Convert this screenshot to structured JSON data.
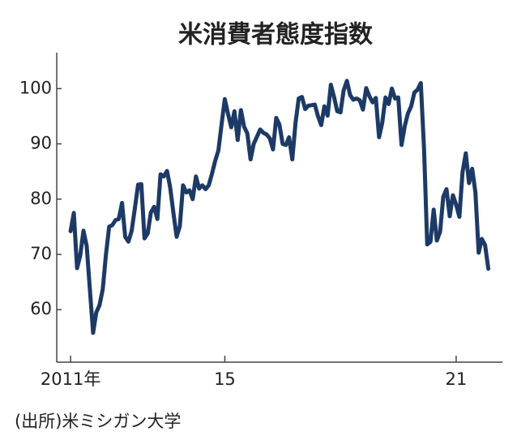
{
  "chart_data": {
    "type": "line",
    "title": "米消費者態度指数",
    "source": "(出所)米ミシガン大学",
    "series": [
      {
        "name": "消費者態度指数",
        "color": "#1d3a66",
        "values": [
          74.2,
          77.5,
          67.5,
          69.8,
          74.3,
          71.5,
          63.7,
          55.8,
          59.5,
          60.8,
          63.7,
          69.9,
          75.0,
          75.3,
          76.2,
          76.4,
          79.3,
          73.2,
          72.3,
          74.3,
          78.3,
          82.6,
          82.7,
          72.9,
          73.8,
          77.6,
          78.6,
          76.4,
          84.5,
          84.1,
          85.1,
          82.1,
          77.5,
          73.2,
          75.1,
          82.5,
          81.2,
          81.6,
          80.0,
          84.1,
          81.9,
          82.5,
          81.8,
          82.5,
          84.6,
          86.9,
          88.8,
          93.6,
          98.1,
          95.4,
          93.0,
          95.9,
          90.7,
          96.1,
          93.1,
          91.9,
          87.2,
          90.0,
          91.3,
          92.6,
          92.0,
          91.7,
          91.0,
          89.0,
          94.7,
          93.5,
          90.0,
          89.8,
          91.2,
          87.2,
          93.8,
          98.2,
          98.5,
          96.3,
          96.9,
          97.0,
          97.1,
          95.0,
          93.4,
          96.8,
          95.1,
          100.7,
          98.5,
          95.9,
          95.7,
          99.7,
          101.4,
          98.8,
          98.0,
          98.2,
          97.9,
          96.2,
          100.1,
          98.6,
          97.5,
          98.3,
          91.2,
          93.8,
          98.4,
          97.2,
          100.0,
          98.2,
          98.4,
          89.8,
          93.2,
          95.5,
          96.8,
          99.3,
          99.8,
          101.0,
          89.1,
          71.8,
          72.3,
          78.1,
          72.5,
          74.1,
          80.4,
          81.8,
          76.9,
          80.7,
          79.0,
          76.8,
          84.9,
          88.3,
          82.9,
          85.5,
          81.2,
          70.3,
          72.8,
          71.7,
          67.4
        ]
      }
    ],
    "x_start": 2011,
    "x_step_months": 1,
    "xlim": [
      2010.64,
      2022.2
    ],
    "xticks": [
      {
        "value": 2011,
        "label": "2011年"
      },
      {
        "value": 2015,
        "label": "15"
      },
      {
        "value": 2021,
        "label": "21"
      }
    ],
    "ylim": [
      50.5,
      106.5
    ],
    "yticks": [
      60,
      70,
      80,
      90,
      100
    ]
  }
}
